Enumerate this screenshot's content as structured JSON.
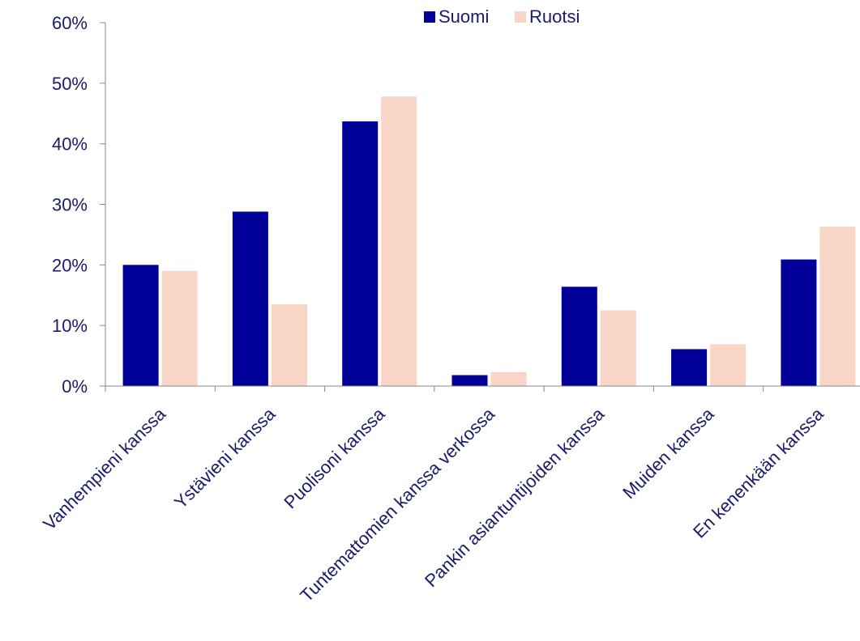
{
  "chart_data": {
    "type": "bar",
    "categories": [
      "Vanhempieni kanssa",
      "Ystävieni kanssa",
      "Puolisoni kanssa",
      "Tuntemattomien kanssa verkossa",
      "Pankin asiantuntijoiden kanssa",
      "Muiden kanssa",
      "En kenenkään kanssa"
    ],
    "series": [
      {
        "name": "Suomi",
        "color": "#000099",
        "values": [
          20,
          28.8,
          43.7,
          1.8,
          16.4,
          6.1,
          20.9
        ]
      },
      {
        "name": "Ruotsi",
        "color": "#f8d5c6",
        "values": [
          19,
          13.5,
          47.8,
          2.3,
          12.5,
          6.9,
          26.3
        ]
      }
    ],
    "yticks": [
      "0%",
      "10%",
      "20%",
      "30%",
      "40%",
      "50%",
      "60%"
    ],
    "ylim": [
      0,
      60
    ],
    "legend_position": "top-center",
    "grid": false,
    "title": "",
    "xlabel": "",
    "ylabel": ""
  }
}
